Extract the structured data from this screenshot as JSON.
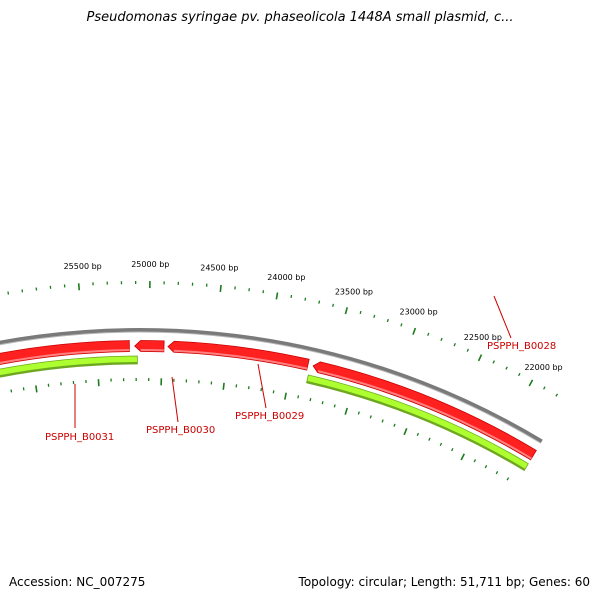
{
  "title": "Pseudomonas syringae pv. phaseolicola 1448A small plasmid, c...",
  "accession_text": "Accession: NC_007275",
  "topology_text": "Topology: circular; Length: 51,711 bp; Genes: 60",
  "colors": {
    "backbone": "#7a7a7a",
    "gene_fill": "#ff2020",
    "gene_edge": "#c80000",
    "band_fill": "#adff2f",
    "band_edge": "#6ea820",
    "tick": "#1e7b1e",
    "label": "#cc0000"
  },
  "scale": {
    "labels": [
      "22000 bp",
      "22500 bp",
      "23000 bp",
      "23500 bp",
      "24000 bp",
      "24500 bp",
      "25000 bp",
      "25500 bp"
    ]
  },
  "genes": [
    {
      "name": "PSPPH_B0028",
      "strand": "minus"
    },
    {
      "name": "PSPPH_B0029",
      "strand": "minus"
    },
    {
      "name": "PSPPH_B0030",
      "strand": "minus"
    },
    {
      "name": "PSPPH_B0031",
      "strand": "minus"
    }
  ]
}
